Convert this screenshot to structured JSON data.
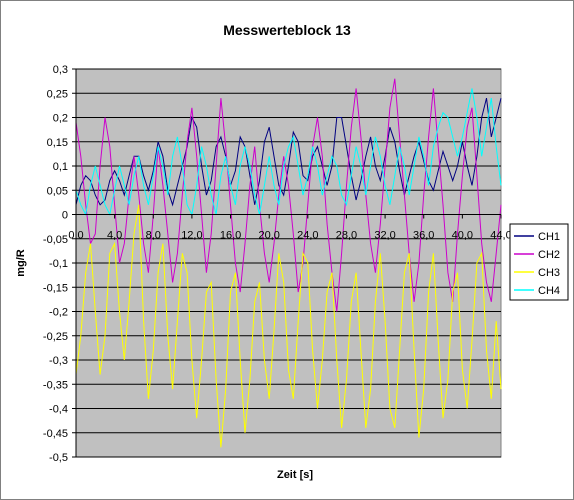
{
  "chart_data": {
    "type": "line",
    "title": "Messwerteblock 13",
    "xlabel": "Zeit [s]",
    "ylabel": "mg/R",
    "xlim": [
      0,
      44
    ],
    "ylim": [
      -0.5,
      0.3
    ],
    "x_ticks": [
      "0,0",
      "4,0",
      "8,0",
      "12,0",
      "16,0",
      "20,0",
      "24,0",
      "28,0",
      "32,0",
      "36,0",
      "40,0",
      "44,0"
    ],
    "y_ticks": [
      "0,3",
      "0,25",
      "0,2",
      "0,15",
      "0,1",
      "0,05",
      "0",
      "-0,05",
      "-0,1",
      "-0,15",
      "-0,2",
      "-0,25",
      "-0,3",
      "-0,35",
      "-0,4",
      "-0,45",
      "-0,5"
    ],
    "grid": true,
    "plot_background": "#c0c0c0",
    "legend_position": "right",
    "series": [
      {
        "name": "CH1",
        "color": "#000080",
        "x": [
          0,
          0.5,
          1,
          1.5,
          2,
          2.5,
          3,
          3.5,
          4,
          4.5,
          5,
          5.5,
          6,
          6.5,
          7,
          7.5,
          8,
          8.5,
          9,
          9.5,
          10,
          10.5,
          11,
          11.5,
          12,
          12.5,
          13,
          13.5,
          14,
          14.5,
          15,
          15.5,
          16,
          16.5,
          17,
          17.5,
          18,
          18.5,
          19,
          19.5,
          20,
          20.5,
          21,
          21.5,
          22,
          22.5,
          23,
          23.5,
          24,
          24.5,
          25,
          25.5,
          26,
          26.5,
          27,
          27.5,
          28,
          28.5,
          29,
          29.5,
          30,
          30.5,
          31,
          31.5,
          32,
          32.5,
          33,
          33.5,
          34,
          34.5,
          35,
          35.5,
          36,
          36.5,
          37,
          37.5,
          38,
          38.5,
          39,
          39.5,
          40,
          40.5,
          41,
          41.5,
          42,
          42.5,
          43,
          43.5,
          44
        ],
        "y": [
          0.02,
          0.06,
          0.08,
          0.07,
          0.04,
          0.02,
          0.03,
          0.07,
          0.09,
          0.07,
          0.04,
          0.08,
          0.12,
          0.12,
          0.08,
          0.05,
          0.09,
          0.15,
          0.12,
          0.05,
          0.02,
          0.06,
          0.1,
          0.14,
          0.2,
          0.18,
          0.1,
          0.04,
          0.07,
          0.14,
          0.16,
          0.12,
          0.06,
          0.09,
          0.16,
          0.14,
          0.08,
          0.02,
          0.07,
          0.15,
          0.18,
          0.12,
          0.06,
          0.04,
          0.1,
          0.17,
          0.15,
          0.08,
          0.07,
          0.12,
          0.14,
          0.1,
          0.06,
          0.1,
          0.2,
          0.2,
          0.14,
          0.08,
          0.03,
          0.07,
          0.12,
          0.16,
          0.1,
          0.07,
          0.12,
          0.18,
          0.15,
          0.09,
          0.04,
          0.08,
          0.12,
          0.15,
          0.11,
          0.07,
          0.05,
          0.09,
          0.13,
          0.1,
          0.07,
          0.1,
          0.15,
          0.1,
          0.06,
          0.12,
          0.2,
          0.24,
          0.16,
          0.2,
          0.24
        ]
      },
      {
        "name": "CH2",
        "color": "#cc00cc",
        "x": [
          0,
          0.5,
          1,
          1.5,
          2,
          2.5,
          3,
          3.5,
          4,
          4.5,
          5,
          5.5,
          6,
          6.5,
          7,
          7.5,
          8,
          8.5,
          9,
          9.5,
          10,
          10.5,
          11,
          11.5,
          12,
          12.5,
          13,
          13.5,
          14,
          14.5,
          15,
          15.5,
          16,
          16.5,
          17,
          17.5,
          18,
          18.5,
          19,
          19.5,
          20,
          20.5,
          21,
          21.5,
          22,
          22.5,
          23,
          23.5,
          24,
          24.5,
          25,
          25.5,
          26,
          26.5,
          27,
          27.5,
          28,
          28.5,
          29,
          29.5,
          30,
          30.5,
          31,
          31.5,
          32,
          32.5,
          33,
          33.5,
          34,
          34.5,
          35,
          35.5,
          36,
          36.5,
          37,
          37.5,
          38,
          38.5,
          39,
          39.5,
          40,
          40.5,
          41,
          41.5,
          42,
          42.5,
          43,
          43.5,
          44
        ],
        "y": [
          0.19,
          0.12,
          0.02,
          -0.06,
          -0.04,
          0.1,
          0.2,
          0.14,
          0.02,
          -0.1,
          -0.06,
          0.04,
          0.12,
          0.04,
          -0.06,
          -0.12,
          0.0,
          0.14,
          0.06,
          -0.04,
          -0.14,
          -0.08,
          0.04,
          0.15,
          0.22,
          0.12,
          0.0,
          -0.12,
          -0.04,
          0.1,
          0.24,
          0.14,
          0.02,
          -0.1,
          -0.16,
          -0.06,
          0.06,
          0.14,
          0.02,
          -0.08,
          -0.14,
          -0.06,
          0.04,
          0.12,
          0.06,
          -0.04,
          -0.16,
          -0.1,
          0.02,
          0.14,
          0.2,
          0.12,
          -0.02,
          -0.12,
          -0.2,
          -0.08,
          0.06,
          0.18,
          0.26,
          0.16,
          0.04,
          -0.06,
          -0.12,
          -0.02,
          0.1,
          0.22,
          0.28,
          0.16,
          0.04,
          -0.08,
          -0.18,
          -0.1,
          0.04,
          0.16,
          0.26,
          0.14,
          0.02,
          -0.12,
          -0.18,
          -0.04,
          0.08,
          0.18,
          0.22,
          0.08,
          -0.06,
          -0.14,
          -0.18,
          -0.08,
          0.02
        ]
      },
      {
        "name": "CH3",
        "color": "#ffff00",
        "x": [
          0,
          0.5,
          1,
          1.5,
          2,
          2.5,
          3,
          3.5,
          4,
          4.5,
          5,
          5.5,
          6,
          6.5,
          7,
          7.5,
          8,
          8.5,
          9,
          9.5,
          10,
          10.5,
          11,
          11.5,
          12,
          12.5,
          13,
          13.5,
          14,
          14.5,
          15,
          15.5,
          16,
          16.5,
          17,
          17.5,
          18,
          18.5,
          19,
          19.5,
          20,
          20.5,
          21,
          21.5,
          22,
          22.5,
          23,
          23.5,
          24,
          24.5,
          25,
          25.5,
          26,
          26.5,
          27,
          27.5,
          28,
          28.5,
          29,
          29.5,
          30,
          30.5,
          31,
          31.5,
          32,
          32.5,
          33,
          33.5,
          34,
          34.5,
          35,
          35.5,
          36,
          36.5,
          37,
          37.5,
          38,
          38.5,
          39,
          39.5,
          40,
          40.5,
          41,
          41.5,
          42,
          42.5,
          43,
          43.5,
          44
        ],
        "y": [
          -0.33,
          -0.25,
          -0.12,
          -0.06,
          -0.2,
          -0.33,
          -0.25,
          -0.08,
          -0.06,
          -0.2,
          -0.3,
          -0.18,
          -0.04,
          0.02,
          -0.22,
          -0.38,
          -0.28,
          -0.12,
          -0.06,
          -0.25,
          -0.36,
          -0.22,
          -0.08,
          -0.12,
          -0.3,
          -0.42,
          -0.3,
          -0.16,
          -0.14,
          -0.34,
          -0.48,
          -0.36,
          -0.16,
          -0.12,
          -0.3,
          -0.45,
          -0.34,
          -0.18,
          -0.14,
          -0.3,
          -0.38,
          -0.24,
          -0.08,
          -0.14,
          -0.32,
          -0.38,
          -0.22,
          -0.08,
          -0.1,
          -0.28,
          -0.4,
          -0.3,
          -0.16,
          -0.12,
          -0.3,
          -0.44,
          -0.34,
          -0.18,
          -0.12,
          -0.28,
          -0.44,
          -0.36,
          -0.18,
          -0.08,
          -0.22,
          -0.4,
          -0.44,
          -0.28,
          -0.12,
          -0.08,
          -0.28,
          -0.46,
          -0.36,
          -0.16,
          -0.08,
          -0.26,
          -0.42,
          -0.34,
          -0.16,
          -0.12,
          -0.32,
          -0.4,
          -0.26,
          -0.1,
          -0.08,
          -0.28,
          -0.38,
          -0.22,
          -0.36
        ]
      },
      {
        "name": "CH4",
        "color": "#00ffff",
        "x": [
          0,
          0.5,
          1,
          1.5,
          2,
          2.5,
          3,
          3.5,
          4,
          4.5,
          5,
          5.5,
          6,
          6.5,
          7,
          7.5,
          8,
          8.5,
          9,
          9.5,
          10,
          10.5,
          11,
          11.5,
          12,
          12.5,
          13,
          13.5,
          14,
          14.5,
          15,
          15.5,
          16,
          16.5,
          17,
          17.5,
          18,
          18.5,
          19,
          19.5,
          20,
          20.5,
          21,
          21.5,
          22,
          22.5,
          23,
          23.5,
          24,
          24.5,
          25,
          25.5,
          26,
          26.5,
          27,
          27.5,
          28,
          28.5,
          29,
          29.5,
          30,
          30.5,
          31,
          31.5,
          32,
          32.5,
          33,
          33.5,
          34,
          34.5,
          35,
          35.5,
          36,
          36.5,
          37,
          37.5,
          38,
          38.5,
          39,
          39.5,
          40,
          40.5,
          41,
          41.5,
          42,
          42.5,
          43,
          43.5,
          44
        ],
        "y": [
          0.05,
          0.02,
          0.0,
          0.06,
          0.1,
          0.06,
          0.02,
          0.0,
          0.05,
          0.1,
          0.06,
          0.02,
          0.08,
          0.12,
          0.06,
          0.02,
          0.08,
          0.14,
          0.1,
          0.04,
          0.12,
          0.16,
          0.1,
          0.02,
          0.0,
          0.06,
          0.14,
          0.1,
          0.04,
          0.0,
          0.08,
          0.12,
          0.06,
          0.02,
          0.1,
          0.14,
          0.1,
          0.04,
          0.0,
          0.06,
          0.12,
          0.06,
          0.02,
          0.1,
          0.14,
          0.16,
          0.1,
          0.04,
          0.08,
          0.14,
          0.1,
          0.04,
          0.08,
          0.12,
          0.1,
          0.04,
          0.02,
          0.08,
          0.14,
          0.1,
          0.04,
          0.1,
          0.16,
          0.12,
          0.06,
          0.02,
          0.08,
          0.14,
          0.1,
          0.04,
          0.1,
          0.16,
          0.12,
          0.06,
          0.14,
          0.18,
          0.21,
          0.2,
          0.16,
          0.12,
          0.16,
          0.21,
          0.26,
          0.2,
          0.12,
          0.18,
          0.24,
          0.14,
          0.06
        ]
      }
    ]
  }
}
